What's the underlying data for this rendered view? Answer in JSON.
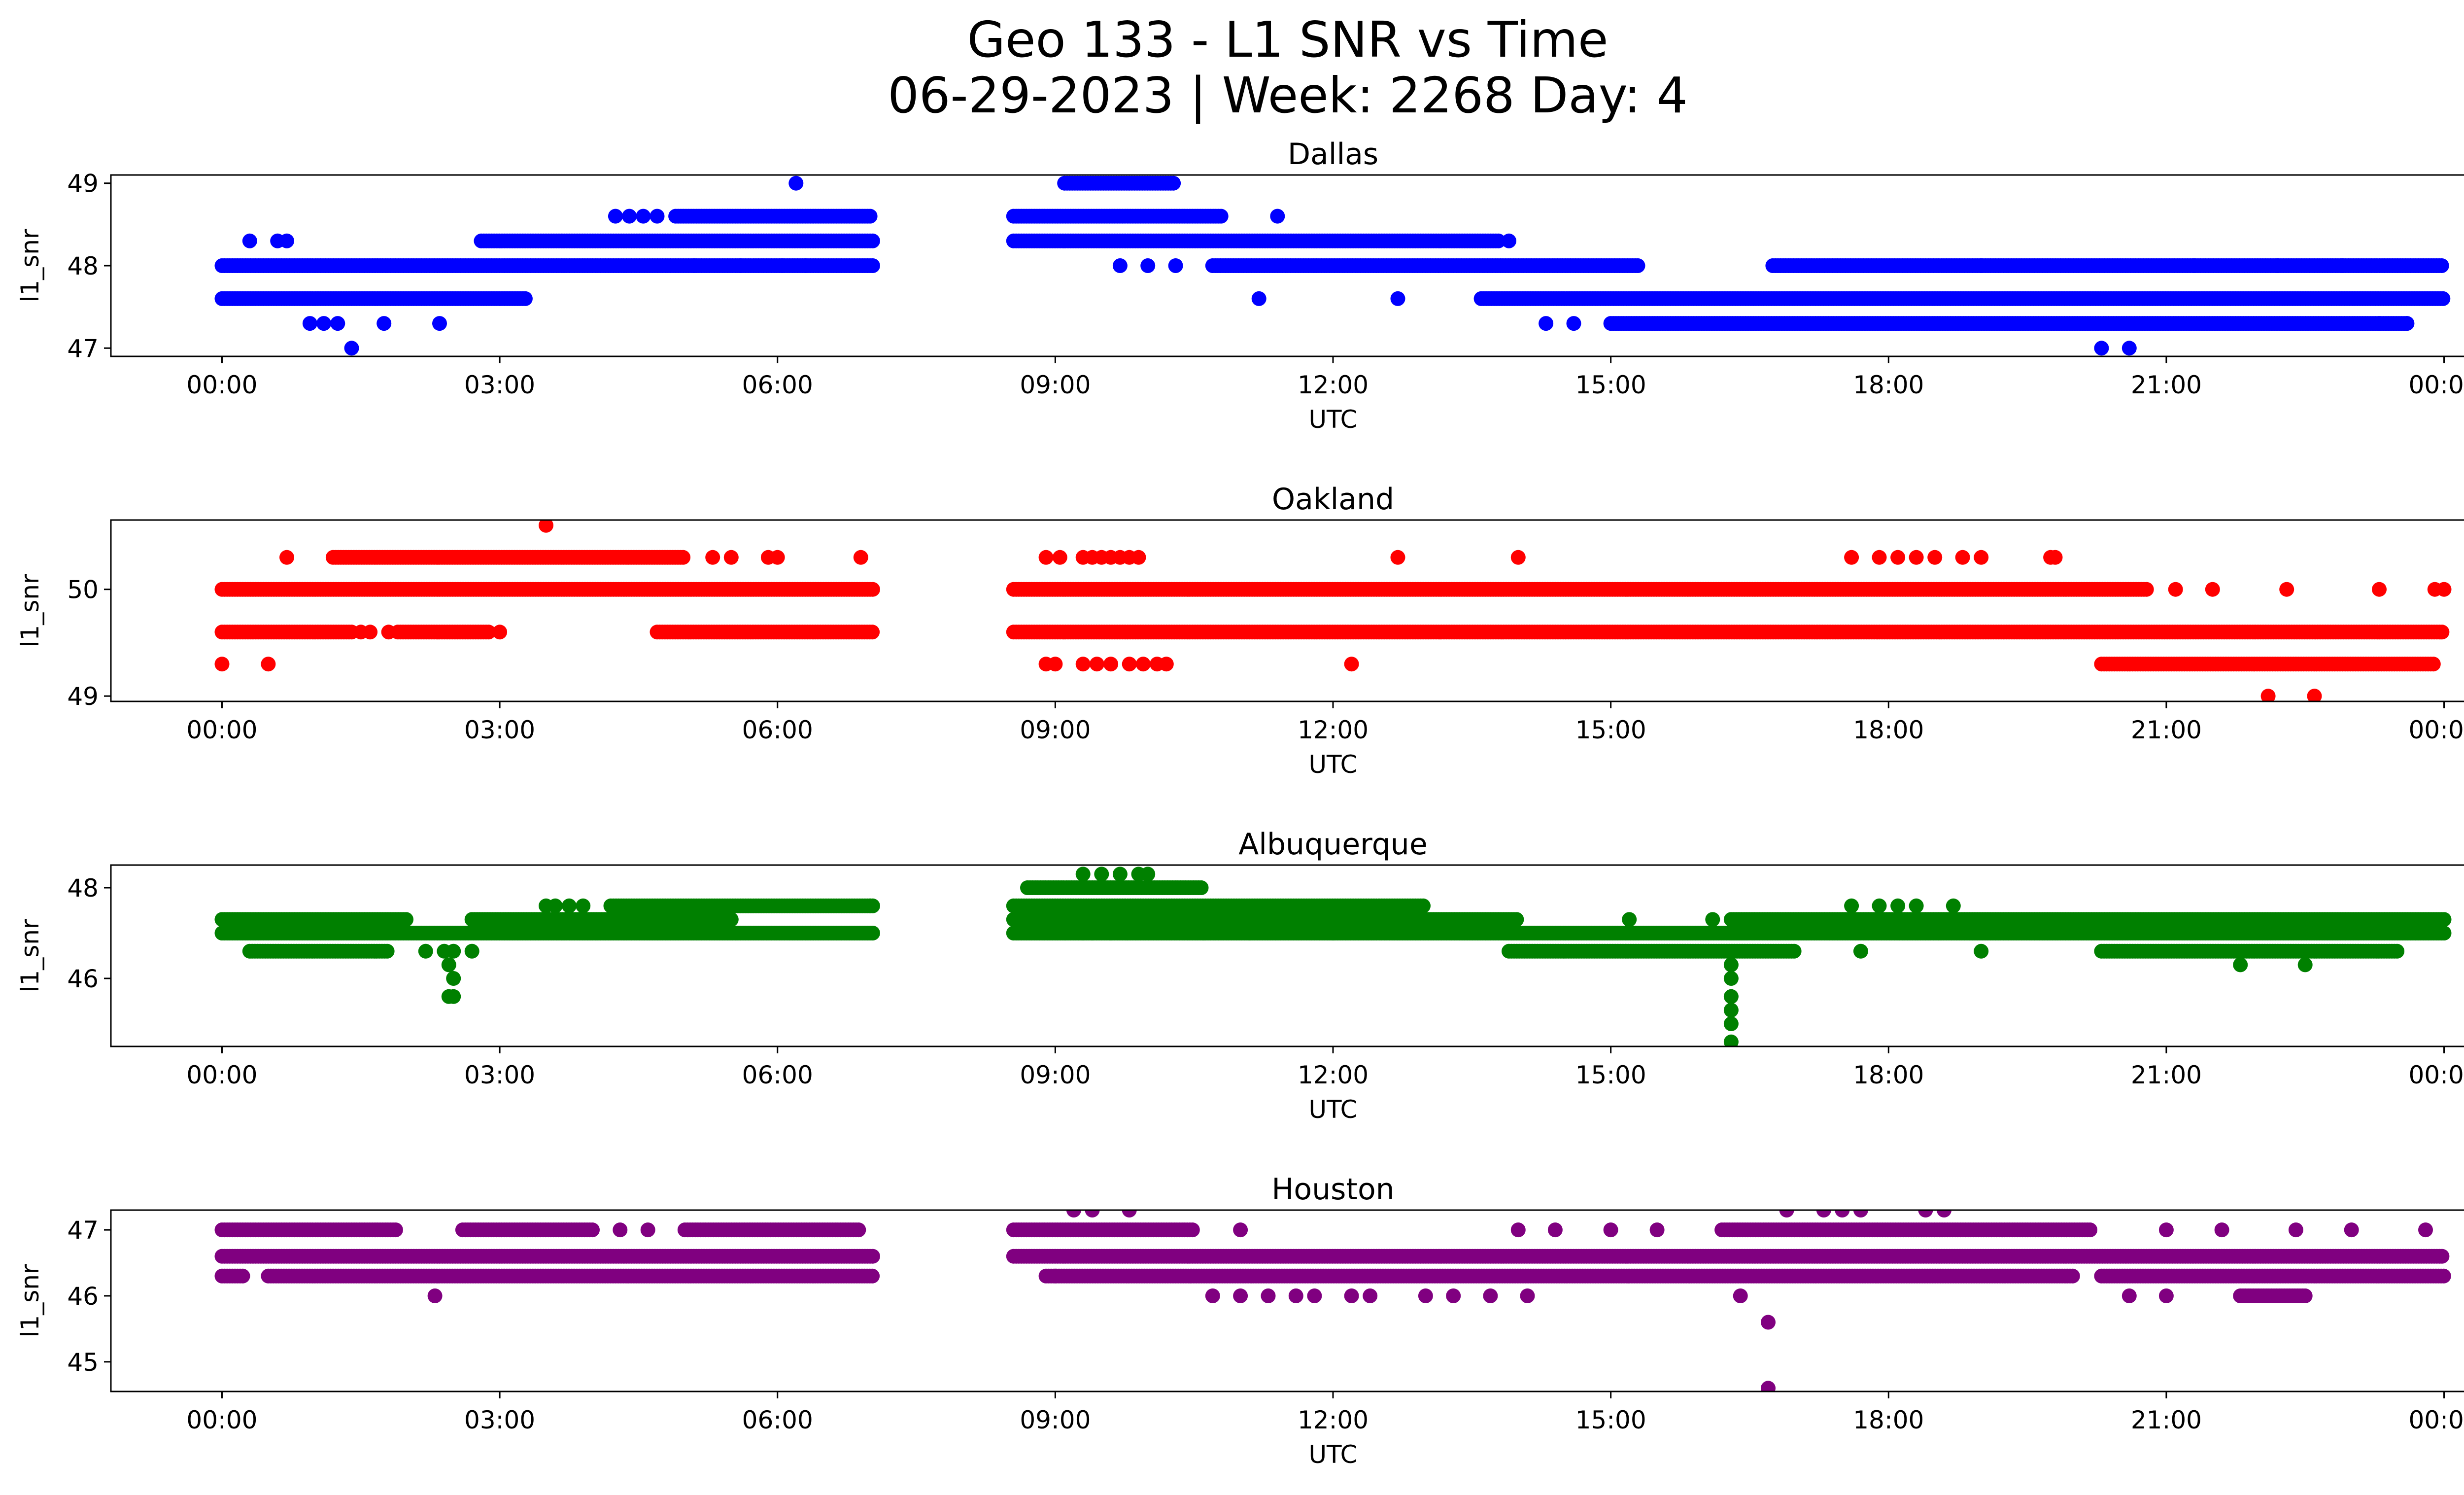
{
  "title": "Geo 133 - L1 SNR vs Time",
  "subtitle": "06-29-2023 | Week: 2268 Day: 4",
  "chart_data": [
    {
      "type": "scatter",
      "title": "Dallas",
      "xlabel": "UTC",
      "ylabel": "l1_snr",
      "color": "#0000ff",
      "xticks": [
        "00:00",
        "03:00",
        "06:00",
        "09:00",
        "12:00",
        "15:00",
        "18:00",
        "21:00",
        "00:00"
      ],
      "yticks": [
        47,
        48,
        49
      ],
      "ylim": [
        46.9,
        49.1
      ],
      "bands": [
        {
          "y": 47.6,
          "ranges": [
            [
              0.0,
              3.3
            ],
            [
              13.6,
              24.0
            ]
          ]
        },
        {
          "y": 48.0,
          "ranges": [
            [
              0.0,
              7.05
            ],
            [
              10.7,
              15.3
            ],
            [
              16.75,
              24.0
            ]
          ]
        },
        {
          "y": 48.3,
          "ranges": [
            [
              2.8,
              7.05
            ],
            [
              8.55,
              13.8
            ]
          ]
        },
        {
          "y": 48.6,
          "ranges": [
            [
              4.9,
              7.0
            ],
            [
              8.55,
              10.8
            ]
          ]
        },
        {
          "y": 49.0,
          "ranges": [
            [
              9.1,
              10.3
            ]
          ]
        },
        {
          "y": 47.3,
          "ranges": [
            [
              15.0,
              23.6
            ]
          ]
        }
      ],
      "points": [
        [
          0.3,
          48.3
        ],
        [
          0.6,
          48.3
        ],
        [
          0.7,
          48.3
        ],
        [
          0.95,
          47.3
        ],
        [
          1.1,
          47.3
        ],
        [
          1.25,
          47.3
        ],
        [
          1.4,
          47.0
        ],
        [
          1.75,
          47.3
        ],
        [
          2.35,
          47.3
        ],
        [
          4.25,
          48.6
        ],
        [
          4.4,
          48.6
        ],
        [
          4.55,
          48.6
        ],
        [
          4.7,
          48.6
        ],
        [
          6.2,
          49.0
        ],
        [
          6.05,
          48.0
        ],
        [
          6.3,
          48.0
        ],
        [
          5.1,
          48.0
        ],
        [
          5.6,
          48.0
        ],
        [
          9.7,
          48.0
        ],
        [
          10.0,
          48.0
        ],
        [
          10.3,
          48.0
        ],
        [
          11.4,
          48.6
        ],
        [
          11.2,
          47.6
        ],
        [
          12.7,
          47.6
        ],
        [
          14.3,
          47.3
        ],
        [
          14.6,
          47.3
        ],
        [
          13.9,
          48.3
        ],
        [
          20.3,
          47.0
        ],
        [
          20.6,
          47.0
        ],
        [
          22.2,
          48.0
        ],
        [
          22.9,
          48.0
        ],
        [
          23.6,
          47.3
        ],
        [
          23.3,
          47.3
        ],
        [
          21.3,
          48.0
        ],
        [
          19.0,
          48.0
        ]
      ]
    },
    {
      "type": "scatter",
      "title": "Oakland",
      "xlabel": "UTC",
      "ylabel": "l1_snr",
      "color": "#ff0000",
      "xticks": [
        "00:00",
        "03:00",
        "06:00",
        "09:00",
        "12:00",
        "15:00",
        "18:00",
        "21:00",
        "00:00"
      ],
      "yticks": [
        49,
        50
      ],
      "ylim": [
        48.95,
        50.65
      ],
      "bands": [
        {
          "y": 50.0,
          "ranges": [
            [
              0.0,
              7.05
            ],
            [
              8.55,
              20.8
            ]
          ]
        },
        {
          "y": 49.6,
          "ranges": [
            [
              0.0,
              1.4
            ],
            [
              8.55,
              24.0
            ]
          ]
        },
        {
          "y": 49.6,
          "ranges": [
            [
              4.7,
              7.05
            ],
            [
              1.9,
              2.9
            ]
          ]
        },
        {
          "y": 50.3,
          "ranges": [
            [
              1.2,
              5.0
            ]
          ]
        },
        {
          "y": 49.3,
          "ranges": [
            [
              20.3,
              23.9
            ]
          ]
        }
      ],
      "points": [
        [
          0.0,
          49.3
        ],
        [
          0.5,
          49.3
        ],
        [
          0.7,
          50.3
        ],
        [
          1.5,
          49.6
        ],
        [
          1.6,
          49.6
        ],
        [
          1.8,
          49.6
        ],
        [
          3.0,
          49.6
        ],
        [
          3.5,
          50.6
        ],
        [
          5.3,
          50.3
        ],
        [
          5.5,
          50.3
        ],
        [
          5.9,
          50.3
        ],
        [
          6.0,
          50.3
        ],
        [
          6.9,
          50.3
        ],
        [
          8.9,
          50.3
        ],
        [
          9.05,
          50.3
        ],
        [
          9.3,
          50.3
        ],
        [
          9.4,
          50.3
        ],
        [
          9.5,
          50.3
        ],
        [
          9.6,
          50.3
        ],
        [
          9.7,
          50.3
        ],
        [
          9.8,
          50.3
        ],
        [
          9.9,
          50.3
        ],
        [
          8.9,
          49.3
        ],
        [
          9.0,
          49.3
        ],
        [
          9.3,
          49.3
        ],
        [
          9.45,
          49.3
        ],
        [
          9.6,
          49.3
        ],
        [
          9.8,
          49.3
        ],
        [
          9.95,
          49.3
        ],
        [
          10.1,
          49.3
        ],
        [
          10.2,
          49.3
        ],
        [
          12.2,
          49.3
        ],
        [
          12.7,
          50.3
        ],
        [
          14.0,
          50.3
        ],
        [
          17.6,
          50.3
        ],
        [
          17.9,
          50.3
        ],
        [
          18.1,
          50.3
        ],
        [
          18.3,
          50.3
        ],
        [
          18.5,
          50.3
        ],
        [
          18.8,
          50.3
        ],
        [
          19.0,
          50.3
        ],
        [
          19.75,
          50.3
        ],
        [
          19.8,
          50.3
        ],
        [
          21.1,
          50.0
        ],
        [
          21.5,
          50.0
        ],
        [
          22.3,
          50.0
        ],
        [
          23.3,
          50.0
        ],
        [
          23.9,
          50.0
        ],
        [
          24.0,
          50.0
        ],
        [
          22.1,
          49.0
        ],
        [
          22.6,
          49.0
        ]
      ]
    },
    {
      "type": "scatter",
      "title": "Albuquerque",
      "xlabel": "UTC",
      "ylabel": "l1_snr",
      "color": "#008000",
      "xticks": [
        "00:00",
        "03:00",
        "06:00",
        "09:00",
        "12:00",
        "15:00",
        "18:00",
        "21:00",
        "00:00"
      ],
      "yticks": [
        46,
        48
      ],
      "ylim": [
        44.5,
        48.5
      ],
      "bands": [
        {
          "y": 47.3,
          "ranges": [
            [
              0.0,
              2.0
            ],
            [
              2.7,
              5.5
            ],
            [
              8.55,
              14.0
            ],
            [
              16.3,
              24.0
            ]
          ]
        },
        {
          "y": 47.0,
          "ranges": [
            [
              0.0,
              7.05
            ],
            [
              8.55,
              16.5
            ],
            [
              16.3,
              24.0
            ]
          ]
        },
        {
          "y": 46.6,
          "ranges": [
            [
              0.3,
              1.8
            ],
            [
              13.9,
              17.0
            ],
            [
              20.3,
              23.5
            ]
          ]
        },
        {
          "y": 47.6,
          "ranges": [
            [
              4.2,
              7.05
            ],
            [
              8.55,
              13.0
            ]
          ]
        },
        {
          "y": 48.0,
          "ranges": [
            [
              8.7,
              10.6
            ]
          ]
        }
      ],
      "points": [
        [
          2.2,
          46.6
        ],
        [
          2.4,
          46.6
        ],
        [
          2.5,
          46.6
        ],
        [
          2.7,
          46.6
        ],
        [
          2.45,
          46.3
        ],
        [
          2.5,
          46.0
        ],
        [
          2.45,
          45.6
        ],
        [
          2.5,
          45.6
        ],
        [
          3.5,
          47.6
        ],
        [
          3.6,
          47.6
        ],
        [
          3.75,
          47.6
        ],
        [
          3.9,
          47.6
        ],
        [
          7.0,
          47.6
        ],
        [
          9.3,
          48.3
        ],
        [
          9.5,
          48.3
        ],
        [
          9.7,
          48.3
        ],
        [
          9.9,
          48.3
        ],
        [
          10.0,
          48.3
        ],
        [
          9.3,
          47.0
        ],
        [
          9.4,
          47.0
        ],
        [
          9.6,
          47.0
        ],
        [
          10.6,
          47.0
        ],
        [
          11.1,
          47.0
        ],
        [
          12.0,
          47.0
        ],
        [
          16.3,
          46.3
        ],
        [
          16.3,
          46.0
        ],
        [
          16.3,
          45.6
        ],
        [
          16.3,
          45.3
        ],
        [
          16.3,
          45.0
        ],
        [
          16.3,
          44.6
        ],
        [
          17.6,
          47.6
        ],
        [
          17.9,
          47.6
        ],
        [
          18.1,
          47.6
        ],
        [
          18.3,
          47.6
        ],
        [
          18.7,
          47.6
        ],
        [
          17.7,
          46.6
        ],
        [
          19.0,
          46.6
        ],
        [
          21.8,
          46.3
        ],
        [
          22.5,
          46.3
        ],
        [
          15.2,
          47.3
        ],
        [
          16.1,
          47.3
        ]
      ]
    },
    {
      "type": "scatter",
      "title": "Houston",
      "xlabel": "UTC",
      "ylabel": "l1_snr",
      "color": "#800080",
      "xticks": [
        "00:00",
        "03:00",
        "06:00",
        "09:00",
        "12:00",
        "15:00",
        "18:00",
        "21:00",
        "00:00"
      ],
      "yticks": [
        45,
        46,
        47
      ],
      "ylim": [
        44.55,
        47.3
      ],
      "bands": [
        {
          "y": 46.6,
          "ranges": [
            [
              0.0,
              7.05
            ],
            [
              8.55,
              24.0
            ]
          ]
        },
        {
          "y": 46.3,
          "ranges": [
            [
              0.0,
              0.25
            ],
            [
              0.5,
              7.05
            ],
            [
              8.9,
              20.0
            ],
            [
              20.3,
              24.0
            ]
          ]
        },
        {
          "y": 47.0,
          "ranges": [
            [
              0.0,
              1.9
            ],
            [
              2.6,
              4.0
            ],
            [
              5.0,
              6.9
            ],
            [
              8.55,
              10.5
            ],
            [
              16.2,
              20.2
            ]
          ]
        },
        {
          "y": 46.0,
          "ranges": [
            [
              21.8,
              22.5
            ]
          ]
        }
      ],
      "points": [
        [
          2.3,
          46.0
        ],
        [
          10.7,
          46.0
        ],
        [
          11.0,
          46.0
        ],
        [
          11.3,
          46.0
        ],
        [
          11.6,
          46.0
        ],
        [
          11.8,
          46.0
        ],
        [
          12.2,
          46.0
        ],
        [
          12.4,
          46.0
        ],
        [
          13.0,
          46.0
        ],
        [
          13.3,
          46.0
        ],
        [
          13.7,
          46.0
        ],
        [
          14.1,
          46.0
        ],
        [
          16.4,
          46.0
        ],
        [
          20.6,
          46.0
        ],
        [
          21.0,
          46.0
        ],
        [
          9.2,
          47.3
        ],
        [
          9.4,
          47.3
        ],
        [
          9.8,
          47.3
        ],
        [
          16.9,
          47.3
        ],
        [
          17.3,
          47.3
        ],
        [
          17.5,
          47.3
        ],
        [
          17.7,
          47.3
        ],
        [
          18.4,
          47.3
        ],
        [
          18.6,
          47.3
        ],
        [
          16.7,
          45.6
        ],
        [
          16.7,
          44.6
        ],
        [
          9.0,
          46.3
        ],
        [
          14.0,
          47.0
        ],
        [
          14.4,
          47.0
        ],
        [
          15.0,
          47.0
        ],
        [
          15.5,
          47.0
        ],
        [
          21.0,
          47.0
        ],
        [
          21.6,
          47.0
        ],
        [
          22.4,
          47.0
        ],
        [
          23.0,
          47.0
        ],
        [
          23.8,
          47.0
        ],
        [
          4.3,
          47.0
        ],
        [
          4.6,
          47.0
        ],
        [
          11.0,
          47.0
        ]
      ]
    }
  ]
}
